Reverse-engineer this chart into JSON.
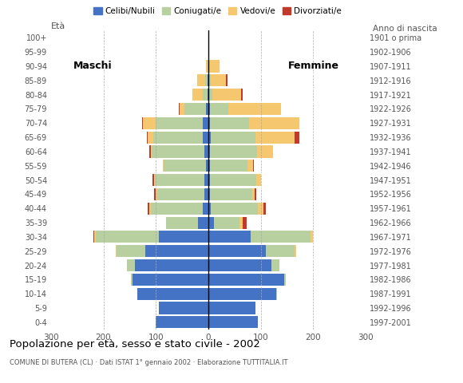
{
  "age_groups": [
    "0-4",
    "5-9",
    "10-14",
    "15-19",
    "20-24",
    "25-29",
    "30-34",
    "35-39",
    "40-44",
    "45-49",
    "50-54",
    "55-59",
    "60-64",
    "65-69",
    "70-74",
    "75-79",
    "80-84",
    "85-89",
    "90-94",
    "95-99",
    "100+"
  ],
  "birth_years": [
    "1997-2001",
    "1992-1996",
    "1987-1991",
    "1982-1986",
    "1977-1981",
    "1972-1976",
    "1967-1971",
    "1962-1966",
    "1957-1961",
    "1952-1956",
    "1947-1951",
    "1942-1946",
    "1937-1941",
    "1932-1936",
    "1927-1931",
    "1922-1926",
    "1917-1921",
    "1912-1916",
    "1907-1911",
    "1902-1906",
    "1901 o prima"
  ],
  "males": {
    "celibi": [
      100,
      95,
      135,
      145,
      140,
      120,
      95,
      20,
      10,
      8,
      7,
      5,
      8,
      10,
      10,
      5,
      1,
      1,
      0,
      0,
      0
    ],
    "coniugati": [
      0,
      0,
      1,
      2,
      15,
      55,
      120,
      60,
      100,
      90,
      95,
      80,
      100,
      95,
      90,
      40,
      10,
      5,
      2,
      0,
      0
    ],
    "vedovi": [
      0,
      0,
      0,
      0,
      0,
      1,
      2,
      1,
      2,
      2,
      2,
      2,
      2,
      10,
      25,
      10,
      20,
      15,
      3,
      0,
      0
    ],
    "divorziati": [
      0,
      0,
      0,
      0,
      0,
      1,
      2,
      0,
      3,
      3,
      3,
      0,
      3,
      2,
      2,
      2,
      0,
      0,
      0,
      0,
      0
    ]
  },
  "females": {
    "nubili": [
      95,
      90,
      130,
      145,
      120,
      110,
      80,
      10,
      5,
      3,
      3,
      3,
      3,
      5,
      3,
      3,
      0,
      0,
      0,
      0,
      0
    ],
    "coniugate": [
      0,
      0,
      1,
      2,
      15,
      55,
      115,
      50,
      90,
      80,
      88,
      72,
      90,
      85,
      75,
      35,
      8,
      4,
      2,
      0,
      0
    ],
    "vedove": [
      0,
      0,
      0,
      0,
      0,
      2,
      5,
      5,
      10,
      5,
      10,
      10,
      30,
      75,
      95,
      100,
      55,
      30,
      20,
      2,
      0
    ],
    "divorziate": [
      0,
      0,
      0,
      0,
      0,
      0,
      0,
      8,
      5,
      3,
      0,
      2,
      0,
      8,
      0,
      0,
      2,
      2,
      0,
      0,
      0
    ]
  },
  "colors": {
    "celibi_nubili": "#4472c4",
    "coniugati": "#b8cfa0",
    "vedovi": "#f5c76e",
    "divorziati": "#c0392b"
  },
  "xlim": 300,
  "title": "Popolazione per età, sesso e stato civile - 2002",
  "subtitle": "COMUNE DI BUTERA (CL) · Dati ISTAT 1° gennaio 2002 · Elaborazione TUTTITALIA.IT",
  "ylabel_left": "Età",
  "ylabel_right": "Anno di nascita",
  "xlabel_maschi": "Maschi",
  "xlabel_femmine": "Femmine",
  "legend_labels": [
    "Celibi/Nubili",
    "Coniugati/e",
    "Vedovi/e",
    "Divorziati/e"
  ],
  "xtick_vals": [
    -300,
    -200,
    -100,
    0,
    100,
    200,
    300
  ],
  "xtick_labs": [
    "300",
    "200",
    "100",
    "0",
    "100",
    "200",
    "300"
  ]
}
